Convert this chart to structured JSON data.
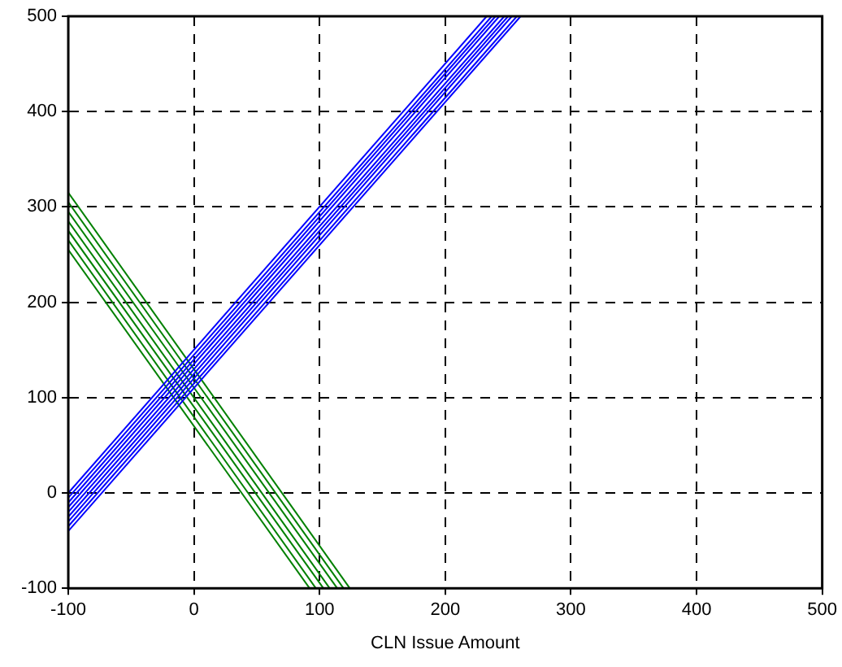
{
  "chart_data": {
    "type": "line",
    "xlabel": "CLN Issue Amount",
    "xlim": [
      -100,
      500
    ],
    "xticks": [
      -100,
      0,
      100,
      200,
      300,
      400,
      500
    ],
    "ylim": [
      -100,
      500
    ],
    "yticks": [
      -100,
      0,
      100,
      200,
      300,
      400,
      500
    ],
    "grid": true,
    "legend": false,
    "marker": "none",
    "line_style": "solid",
    "series": [
      {
        "color": "#0000ff",
        "x": [
          -100,
          260
        ],
        "values": [
          -40,
          500
        ]
      },
      {
        "color": "#0000ff",
        "x": [
          -100,
          257
        ],
        "values": [
          -35,
          500
        ]
      },
      {
        "color": "#0000ff",
        "x": [
          -100,
          253
        ],
        "values": [
          -30,
          500
        ]
      },
      {
        "color": "#0000ff",
        "x": [
          -100,
          250
        ],
        "values": [
          -25,
          500
        ]
      },
      {
        "color": "#0000ff",
        "x": [
          -100,
          247
        ],
        "values": [
          -20,
          500
        ]
      },
      {
        "color": "#0000ff",
        "x": [
          -100,
          243
        ],
        "values": [
          -15,
          500
        ]
      },
      {
        "color": "#0000ff",
        "x": [
          -100,
          240
        ],
        "values": [
          -10,
          500
        ]
      },
      {
        "color": "#0000ff",
        "x": [
          -100,
          237
        ],
        "values": [
          -5,
          500
        ]
      },
      {
        "color": "#0000ff",
        "x": [
          -100,
          233
        ],
        "values": [
          0,
          500
        ]
      },
      {
        "color": "#008000",
        "x": [
          -100,
          92
        ],
        "values": [
          255,
          -100
        ]
      },
      {
        "color": "#008000",
        "x": [
          -100,
          97
        ],
        "values": [
          265,
          -100
        ]
      },
      {
        "color": "#008000",
        "x": [
          -100,
          103
        ],
        "values": [
          275,
          -100
        ]
      },
      {
        "color": "#008000",
        "x": [
          -100,
          108
        ],
        "values": [
          285,
          -100
        ]
      },
      {
        "color": "#008000",
        "x": [
          -100,
          114
        ],
        "values": [
          295,
          -100
        ]
      },
      {
        "color": "#008000",
        "x": [
          -100,
          119
        ],
        "values": [
          305,
          -100
        ]
      },
      {
        "color": "#008000",
        "x": [
          -100,
          124
        ],
        "values": [
          315,
          -100
        ]
      }
    ]
  }
}
